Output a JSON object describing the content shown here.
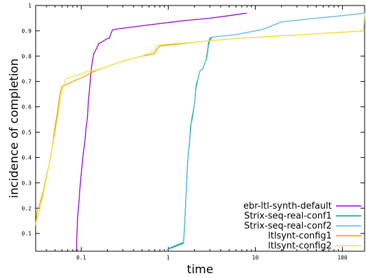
{
  "chart_data": {
    "type": "line",
    "title": "",
    "xlabel": "time",
    "ylabel": "incidence of completion",
    "x_scale": "log",
    "xlim": [
      0.03,
      180
    ],
    "ylim": [
      0.03,
      1.0
    ],
    "x_ticks": [
      {
        "value": 0.1,
        "label": "0.1"
      },
      {
        "value": 1,
        "label": "1"
      },
      {
        "value": 10,
        "label": "10"
      },
      {
        "value": 100,
        "label": "100"
      }
    ],
    "y_ticks": [
      {
        "value": 0.1,
        "label": "0.1"
      },
      {
        "value": 0.2,
        "label": "0.2"
      },
      {
        "value": 0.3,
        "label": "0.3"
      },
      {
        "value": 0.4,
        "label": "0.4"
      },
      {
        "value": 0.5,
        "label": "0.5"
      },
      {
        "value": 0.6,
        "label": "0.6"
      },
      {
        "value": 0.7,
        "label": "0.7"
      },
      {
        "value": 0.8,
        "label": "0.8"
      },
      {
        "value": 0.9,
        "label": "0.9"
      },
      {
        "value": 1.0,
        "label": "1"
      }
    ],
    "grid": false,
    "legend_position": "bottom-right",
    "series": [
      {
        "name": "ebr-ltl-synth-default",
        "color": "#9400d3",
        "x": [
          0.088,
          0.089,
          0.09,
          0.091,
          0.093,
          0.095,
          0.097,
          0.099,
          0.102,
          0.106,
          0.11,
          0.114,
          0.118,
          0.121,
          0.124,
          0.127,
          0.129,
          0.132,
          0.136,
          0.14,
          0.15,
          0.16,
          0.18,
          0.2,
          0.21,
          0.215,
          0.22,
          0.23,
          0.5,
          1.5,
          3.0,
          5.0,
          8.0
        ],
        "y": [
          0.03,
          0.08,
          0.12,
          0.16,
          0.2,
          0.24,
          0.28,
          0.32,
          0.36,
          0.42,
          0.46,
          0.52,
          0.56,
          0.62,
          0.66,
          0.7,
          0.73,
          0.76,
          0.79,
          0.81,
          0.83,
          0.85,
          0.86,
          0.87,
          0.87,
          0.88,
          0.89,
          0.905,
          0.92,
          0.94,
          0.95,
          0.96,
          0.97
        ]
      },
      {
        "name": "Strix-seq-real-conf1",
        "color": "#009e73",
        "x": [
          1.0,
          1.5,
          1.55,
          1.6,
          1.65,
          1.7,
          1.75,
          1.8,
          1.9,
          2.0,
          2.05,
          2.1,
          2.2,
          2.3,
          2.5,
          2.6,
          2.7,
          2.8,
          2.9,
          3.0,
          3.2
        ],
        "y": [
          0.04,
          0.065,
          0.15,
          0.25,
          0.35,
          0.42,
          0.45,
          0.52,
          0.56,
          0.61,
          0.65,
          0.69,
          0.71,
          0.74,
          0.75,
          0.77,
          0.78,
          0.81,
          0.85,
          0.87,
          0.875
        ]
      },
      {
        "name": "Strix-seq-real-conf2",
        "color": "#56b4e9",
        "x": [
          0.95,
          1.5,
          1.55,
          1.6,
          1.65,
          1.7,
          1.75,
          1.8,
          1.85,
          1.9,
          2.0,
          2.05,
          2.1,
          2.2,
          2.3,
          2.5,
          2.6,
          2.7,
          2.8,
          2.9,
          3.0,
          3.2,
          6.0,
          12.0,
          20.0,
          50.0,
          100.0,
          180.0
        ],
        "y": [
          0.035,
          0.06,
          0.15,
          0.25,
          0.35,
          0.42,
          0.46,
          0.5,
          0.55,
          0.57,
          0.61,
          0.65,
          0.68,
          0.71,
          0.74,
          0.75,
          0.77,
          0.78,
          0.8,
          0.84,
          0.86,
          0.875,
          0.885,
          0.905,
          0.935,
          0.95,
          0.96,
          0.97
        ]
      },
      {
        "name": "ltlsynt-config1",
        "color": "#e69f00",
        "x": [
          0.03,
          0.031,
          0.033,
          0.035,
          0.037,
          0.039,
          0.042,
          0.045,
          0.048,
          0.05,
          0.053,
          0.055,
          0.057,
          0.06,
          0.08,
          0.11,
          0.14,
          0.2,
          0.3,
          0.5,
          0.7,
          0.75,
          0.8,
          2.0,
          6.0,
          20.0,
          60.0,
          180.0
        ],
        "y": [
          0.13,
          0.18,
          0.21,
          0.24,
          0.27,
          0.31,
          0.36,
          0.41,
          0.47,
          0.52,
          0.57,
          0.61,
          0.65,
          0.68,
          0.7,
          0.72,
          0.74,
          0.76,
          0.78,
          0.8,
          0.81,
          0.83,
          0.84,
          0.855,
          0.87,
          0.88,
          0.89,
          0.9
        ]
      },
      {
        "name": "ltlsynt-config2",
        "color": "#f0e442",
        "x": [
          0.03,
          0.032,
          0.034,
          0.036,
          0.038,
          0.04,
          0.043,
          0.046,
          0.049,
          0.052,
          0.055,
          0.058,
          0.062,
          0.067,
          0.09,
          0.12,
          0.15,
          0.2,
          0.3,
          0.5,
          0.7,
          0.72,
          0.8,
          2.0,
          6.0,
          20.0,
          60.0,
          175.0,
          180.0
        ],
        "y": [
          0.14,
          0.17,
          0.2,
          0.24,
          0.28,
          0.32,
          0.38,
          0.43,
          0.48,
          0.53,
          0.58,
          0.63,
          0.68,
          0.71,
          0.725,
          0.74,
          0.745,
          0.76,
          0.78,
          0.8,
          0.82,
          0.84,
          0.845,
          0.855,
          0.87,
          0.88,
          0.89,
          0.9,
          0.97
        ]
      }
    ]
  }
}
